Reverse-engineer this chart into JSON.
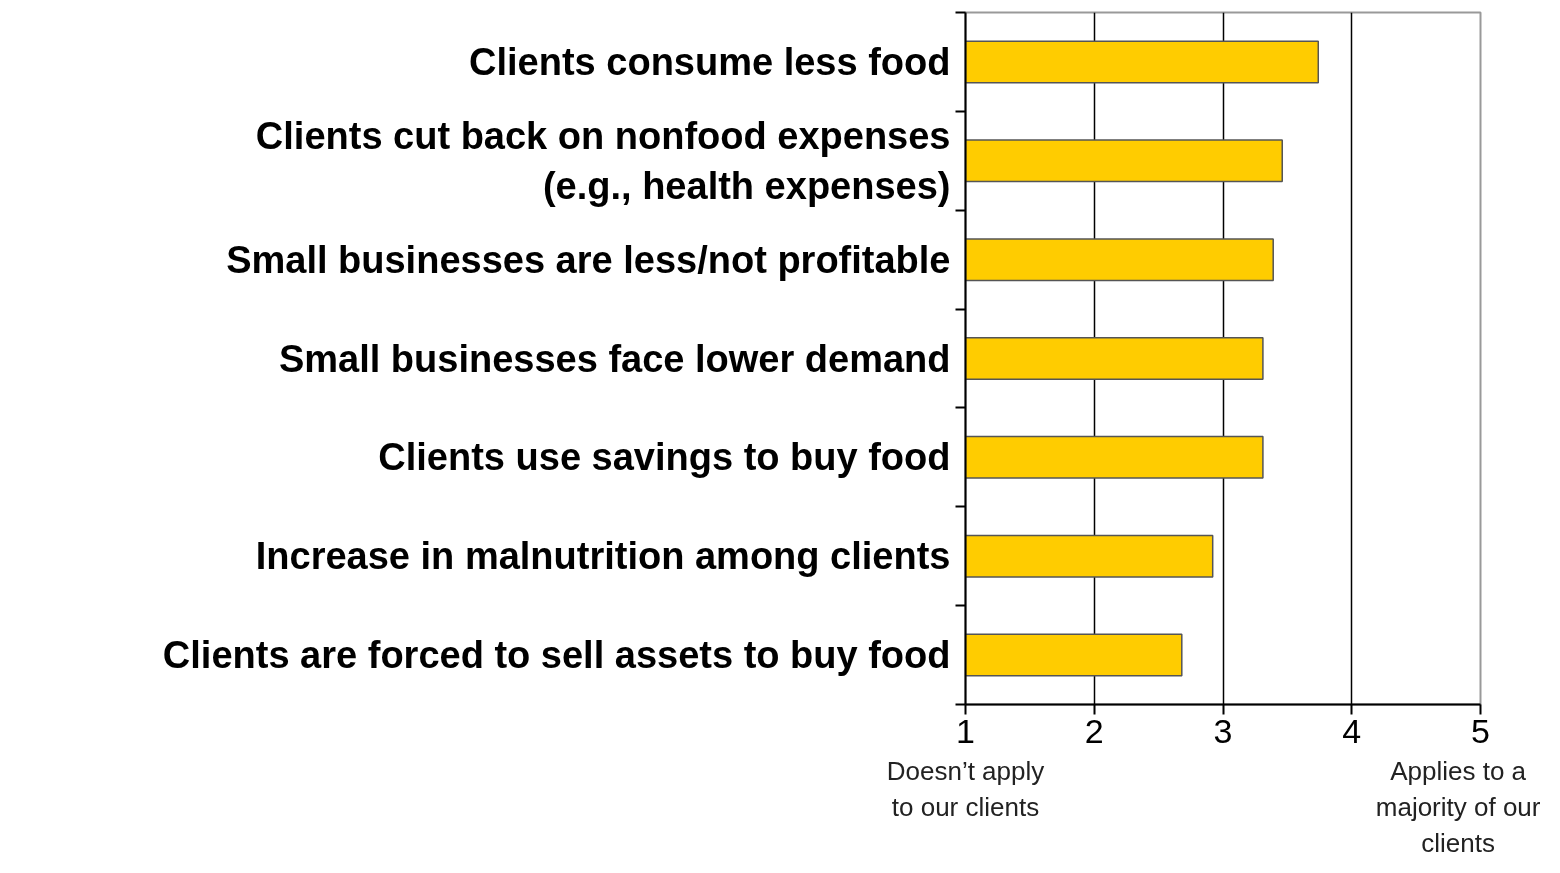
{
  "chart_data": {
    "type": "bar",
    "orientation": "horizontal",
    "categories": [
      "Clients consume less food",
      "Clients cut back on nonfood expenses\n(e.g., health expenses)",
      "Small businesses are less/not profitable",
      "Small businesses face lower demand",
      "Clients use savings to buy food",
      "Increase in malnutrition among clients",
      "Clients are forced to sell assets to buy food"
    ],
    "values": [
      3.74,
      3.46,
      3.39,
      3.31,
      3.31,
      2.92,
      2.68
    ],
    "color": "#ffcc00",
    "xlim": [
      1,
      5
    ],
    "xticks": [
      1,
      2,
      3,
      4,
      5
    ],
    "grid": "x",
    "annotations": [
      "Doesn’t apply to our clients",
      "Applies to a majority of our clients"
    ]
  }
}
